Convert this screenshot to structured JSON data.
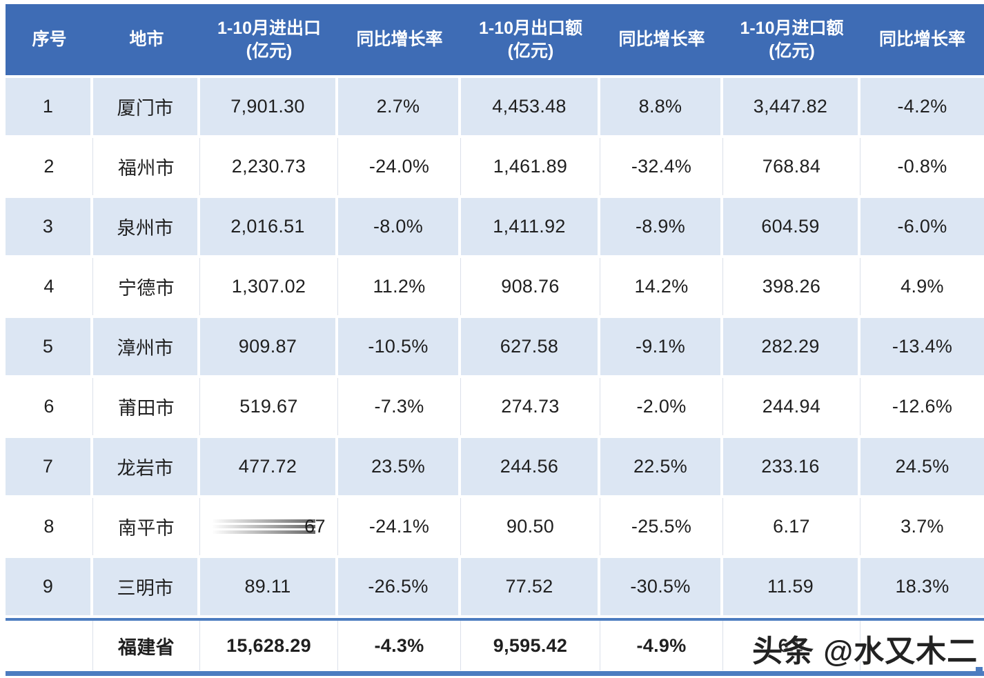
{
  "table": {
    "columns": [
      {
        "label": "序号"
      },
      {
        "label": "地市"
      },
      {
        "label": "1-10月进出口\n(亿元)"
      },
      {
        "label": "同比增长率"
      },
      {
        "label": "1-10月出口额\n(亿元)"
      },
      {
        "label": "同比增长率"
      },
      {
        "label": "1-10月进口额\n(亿元)"
      },
      {
        "label": "同比增长率"
      }
    ],
    "rows": [
      [
        "1",
        "厦门市",
        "7,901.30",
        "2.7%",
        "4,453.48",
        "8.8%",
        "3,447.82",
        "-4.2%"
      ],
      [
        "2",
        "福州市",
        "2,230.73",
        "-24.0%",
        "1,461.89",
        "-32.4%",
        "768.84",
        "-0.8%"
      ],
      [
        "3",
        "泉州市",
        "2,016.51",
        "-8.0%",
        "1,411.92",
        "-8.9%",
        "604.59",
        "-6.0%"
      ],
      [
        "4",
        "宁德市",
        "1,307.02",
        "11.2%",
        "908.76",
        "14.2%",
        "398.26",
        "4.9%"
      ],
      [
        "5",
        "漳州市",
        "909.87",
        "-10.5%",
        "627.58",
        "-9.1%",
        "282.29",
        "-13.4%"
      ],
      [
        "6",
        "莆田市",
        "519.67",
        "-7.3%",
        "274.73",
        "-2.0%",
        "244.94",
        "-12.6%"
      ],
      [
        "7",
        "龙岩市",
        "477.72",
        "23.5%",
        "244.56",
        "22.5%",
        "233.16",
        "24.5%"
      ],
      [
        "8",
        "南平市",
        "67",
        "-24.1%",
        "90.50",
        "-25.5%",
        "6.17",
        "3.7%"
      ],
      [
        "9",
        "三明市",
        "89.11",
        "-26.5%",
        "77.52",
        "-30.5%",
        "11.59",
        "18.3%"
      ]
    ],
    "smudged_cell": {
      "row": 7,
      "col": 2,
      "note": "leading digits smeared, only trailing 67 visible"
    },
    "total_row": [
      "",
      "福建省",
      "15,628.29",
      "-4.3%",
      "9,595.42",
      "-4.9%",
      "6,0",
      ""
    ],
    "total_import_note": "value partially covered by watermark, only 6,0 visible"
  },
  "watermark": {
    "text": "头条 @水又木二"
  },
  "colors": {
    "header_bg": "#3E6CB5",
    "row_alt_bg": "#DCE6F3",
    "row_bg": "#FFFFFF",
    "divider_blue": "#4C7CC0",
    "header_text": "#FFFFFF",
    "body_text": "#1F1F1F"
  }
}
